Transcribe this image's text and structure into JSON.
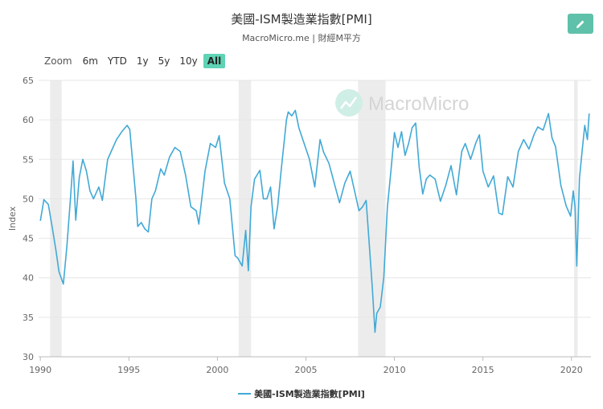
{
  "header": {
    "title": "美國-ISM製造業指數[PMI]",
    "subtitle": "MacroMicro.me | 財經M平方"
  },
  "zoom": {
    "label": "Zoom",
    "buttons": [
      "6m",
      "YTD",
      "1y",
      "5y",
      "10y",
      "All"
    ],
    "active": "All"
  },
  "watermark": "MacroMicro",
  "colors": {
    "line": "#41a9d6",
    "accent": "#5fc1a9",
    "recession": "#ececec"
  },
  "chart_data": {
    "type": "line",
    "title": "美國-ISM製造業指數[PMI]",
    "ylabel": "Index",
    "ylim": [
      30,
      65
    ],
    "xlim": [
      1989.9,
      2021.1
    ],
    "yticks": [
      30,
      35,
      40,
      45,
      50,
      55,
      60,
      65
    ],
    "xticks": [
      1990,
      1995,
      2000,
      2005,
      2010,
      2015,
      2020
    ],
    "grid": "horizontal",
    "legend": "bottom-center",
    "recessions": [
      [
        1990.55,
        1991.2
      ],
      [
        2001.2,
        2001.9
      ],
      [
        2007.95,
        2009.5
      ],
      [
        2020.15,
        2020.35
      ]
    ],
    "series": [
      {
        "name": "美國-ISM製造業指數[PMI]",
        "x": [
          1990.0,
          1990.2,
          1990.45,
          1990.7,
          1990.9,
          1991.05,
          1991.3,
          1991.5,
          1991.7,
          1991.85,
          1992.0,
          1992.2,
          1992.4,
          1992.6,
          1992.8,
          1993.0,
          1993.3,
          1993.5,
          1993.8,
          1994.0,
          1994.3,
          1994.6,
          1994.9,
          1995.05,
          1995.2,
          1995.4,
          1995.5,
          1995.7,
          1995.9,
          1996.1,
          1996.3,
          1996.5,
          1996.8,
          1997.0,
          1997.3,
          1997.6,
          1997.9,
          1998.2,
          1998.5,
          1998.8,
          1998.95,
          1999.3,
          1999.6,
          1999.9,
          2000.1,
          2000.4,
          2000.7,
          2001.0,
          2001.15,
          2001.4,
          2001.6,
          2001.75,
          2001.9,
          2002.1,
          2002.4,
          2002.6,
          2002.8,
          2003.0,
          2003.2,
          2003.4,
          2003.6,
          2003.9,
          2004.0,
          2004.2,
          2004.4,
          2004.6,
          2004.9,
          2005.2,
          2005.5,
          2005.8,
          2006.0,
          2006.3,
          2006.6,
          2006.9,
          2007.2,
          2007.5,
          2007.8,
          2008.0,
          2008.2,
          2008.4,
          2008.6,
          2008.75,
          2008.9,
          2009.0,
          2009.2,
          2009.4,
          2009.6,
          2009.8,
          2010.0,
          2010.2,
          2010.4,
          2010.6,
          2010.8,
          2011.0,
          2011.2,
          2011.4,
          2011.6,
          2011.8,
          2012.0,
          2012.3,
          2012.6,
          2012.9,
          2013.2,
          2013.5,
          2013.8,
          2014.0,
          2014.3,
          2014.6,
          2014.8,
          2015.0,
          2015.3,
          2015.6,
          2015.9,
          2016.1,
          2016.4,
          2016.7,
          2017.0,
          2017.3,
          2017.6,
          2017.9,
          2018.1,
          2018.4,
          2018.7,
          2018.9,
          2019.1,
          2019.4,
          2019.7,
          2019.95,
          2020.1,
          2020.2,
          2020.3,
          2020.45,
          2020.6,
          2020.75,
          2020.9,
          2021.0
        ],
        "values": [
          47.2,
          49.9,
          49.3,
          46.0,
          43.2,
          40.8,
          39.2,
          44.0,
          50.0,
          54.8,
          47.3,
          52.7,
          55.0,
          53.5,
          51.0,
          50.0,
          51.5,
          49.8,
          55.0,
          56.0,
          57.5,
          58.5,
          59.3,
          58.8,
          55.0,
          50.0,
          46.5,
          47.0,
          46.2,
          45.8,
          50.0,
          51.0,
          53.8,
          53.0,
          55.3,
          56.5,
          56.0,
          53.0,
          49.0,
          48.5,
          46.8,
          53.5,
          57.0,
          56.5,
          58.0,
          52.0,
          50.0,
          42.8,
          42.5,
          41.5,
          46.0,
          40.9,
          49.0,
          52.5,
          53.6,
          50.0,
          50.0,
          51.5,
          46.2,
          49.0,
          53.6,
          60.0,
          61.0,
          60.5,
          61.2,
          59.0,
          57.0,
          55.0,
          51.5,
          57.5,
          55.9,
          54.5,
          52.0,
          49.5,
          52.0,
          53.5,
          50.5,
          48.5,
          49.0,
          49.8,
          43.5,
          38.7,
          33.1,
          35.5,
          36.3,
          40.1,
          48.9,
          53.5,
          58.4,
          56.5,
          58.5,
          55.5,
          57.0,
          59.0,
          59.6,
          54.0,
          50.6,
          52.5,
          53.0,
          52.5,
          49.7,
          51.7,
          54.2,
          50.5,
          56.0,
          57.0,
          55.0,
          57.1,
          58.1,
          53.5,
          51.5,
          52.9,
          48.2,
          48.0,
          52.8,
          51.5,
          56.0,
          57.5,
          56.3,
          58.2,
          59.1,
          58.7,
          60.8,
          57.7,
          56.6,
          51.7,
          49.1,
          47.8,
          51.0,
          49.0,
          41.5,
          52.6,
          56.0,
          59.3,
          57.5,
          60.8
        ]
      }
    ]
  }
}
